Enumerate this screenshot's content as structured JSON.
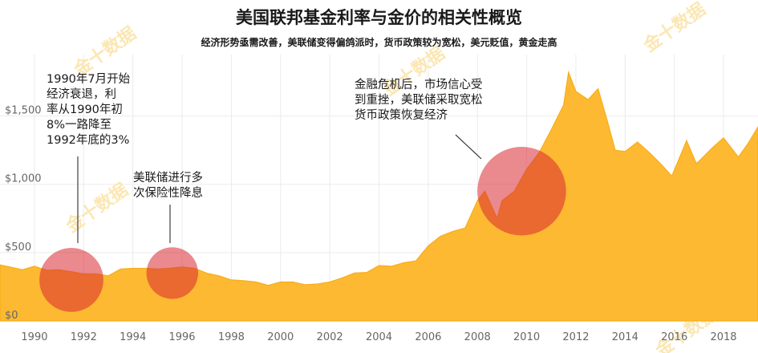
{
  "chart_data": {
    "type": "area",
    "title": "美国联邦基金利率与金价的相关性概览",
    "subtitle": "经济形势亟需改善，美联储变得偏鸽派时，货币政策较为宽松，美元贬值，黄金走高",
    "x_ticks": [
      "1990",
      "1992",
      "1994",
      "1996",
      "1998",
      "2000",
      "2002",
      "2004",
      "2006",
      "2008",
      "2010",
      "2012",
      "2014",
      "2016",
      "2018"
    ],
    "y_ticks": [
      "$0",
      "$500",
      "$1,000",
      "$1,500"
    ],
    "xlim": [
      1988.6,
      2019.4
    ],
    "ylim": [
      0,
      1950
    ],
    "grid": true,
    "series": [
      {
        "values": [
          [
            1988.6,
            410
          ],
          [
            1989.0,
            395
          ],
          [
            1989.5,
            375
          ],
          [
            1990.0,
            400
          ],
          [
            1990.5,
            370
          ],
          [
            1991.0,
            375
          ],
          [
            1991.5,
            360
          ],
          [
            1992.0,
            345
          ],
          [
            1992.5,
            345
          ],
          [
            1993.0,
            330
          ],
          [
            1993.5,
            380
          ],
          [
            1994.0,
            385
          ],
          [
            1994.5,
            385
          ],
          [
            1995.0,
            380
          ],
          [
            1995.5,
            385
          ],
          [
            1996.0,
            395
          ],
          [
            1996.5,
            385
          ],
          [
            1997.0,
            350
          ],
          [
            1997.5,
            330
          ],
          [
            1998.0,
            300
          ],
          [
            1998.5,
            295
          ],
          [
            1999.0,
            285
          ],
          [
            1999.5,
            260
          ],
          [
            2000.0,
            285
          ],
          [
            2000.5,
            285
          ],
          [
            2001.0,
            265
          ],
          [
            2001.5,
            270
          ],
          [
            2002.0,
            285
          ],
          [
            2002.5,
            315
          ],
          [
            2003.0,
            350
          ],
          [
            2003.5,
            355
          ],
          [
            2004.0,
            405
          ],
          [
            2004.5,
            400
          ],
          [
            2005.0,
            425
          ],
          [
            2005.5,
            440
          ],
          [
            2006.0,
            550
          ],
          [
            2006.5,
            620
          ],
          [
            2007.0,
            655
          ],
          [
            2007.5,
            680
          ],
          [
            2008.0,
            880
          ],
          [
            2008.3,
            950
          ],
          [
            2008.8,
            750
          ],
          [
            2009.0,
            880
          ],
          [
            2009.5,
            950
          ],
          [
            2010.0,
            1110
          ],
          [
            2010.5,
            1230
          ],
          [
            2011.0,
            1400
          ],
          [
            2011.5,
            1580
          ],
          [
            2011.7,
            1820
          ],
          [
            2012.0,
            1680
          ],
          [
            2012.5,
            1620
          ],
          [
            2012.9,
            1700
          ],
          [
            2013.3,
            1450
          ],
          [
            2013.6,
            1250
          ],
          [
            2014.0,
            1240
          ],
          [
            2014.5,
            1310
          ],
          [
            2015.0,
            1230
          ],
          [
            2015.5,
            1140
          ],
          [
            2015.9,
            1060
          ],
          [
            2016.5,
            1320
          ],
          [
            2016.9,
            1150
          ],
          [
            2017.5,
            1260
          ],
          [
            2018.0,
            1340
          ],
          [
            2018.6,
            1200
          ],
          [
            2019.0,
            1300
          ],
          [
            2019.4,
            1420
          ]
        ]
      }
    ],
    "annotations": [
      {
        "text": "1990年7月开始\n经济衰退，利\n率从1990年初\n8%一路降至\n1992年底的3%"
      },
      {
        "text": "美联储进行多\n次保险性降息"
      },
      {
        "text": "金融危机后，市场信心受\n到重挫，美联储采取宽松\n货币政策恢复经济"
      }
    ],
    "highlights": [
      {
        "x": 1991.5,
        "y": 300,
        "r_years": 1.3
      },
      {
        "x": 1995.6,
        "y": 350,
        "r_years": 1.05
      },
      {
        "x": 2009.8,
        "y": 950,
        "r_years": 1.8
      }
    ],
    "watermark": "金十数据",
    "colors": {
      "area": "#FDB931",
      "area_line": "#F7AE1B",
      "circle": "rgba(216, 40, 50, 0.55)",
      "grid": "#ebebeb",
      "tick_text": "#666666",
      "watermark": "#FBE7B3"
    }
  }
}
